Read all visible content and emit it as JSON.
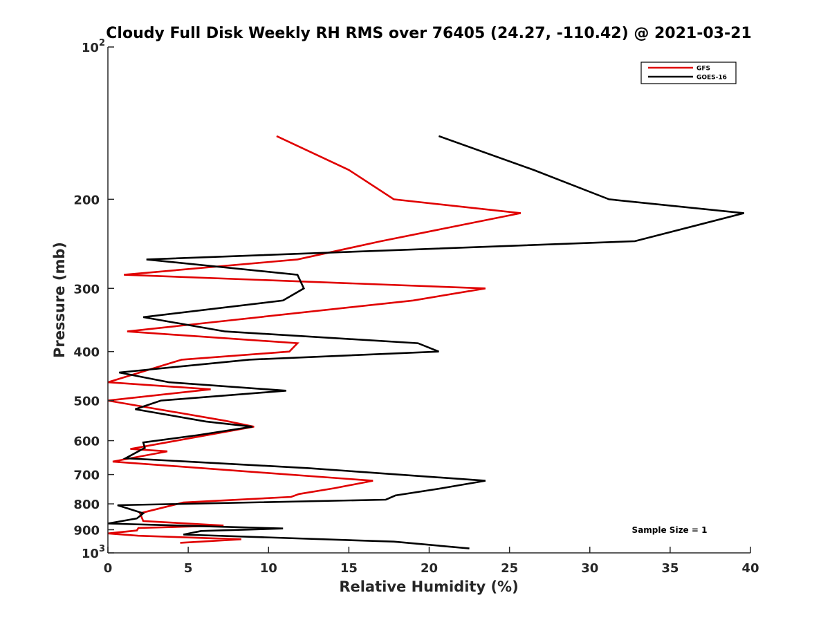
{
  "chart_data": {
    "type": "line",
    "title": "Cloudy Full Disk Weekly RH RMS over 76405 (24.27, -110.42) @ 2021-03-21",
    "xlabel": "Relative Humidity (%)",
    "ylabel": "Pressure (mb)",
    "xlim": [
      0,
      40
    ],
    "ylim": [
      100,
      1000
    ],
    "y_scale": "log",
    "y_reversed": true,
    "x_ticks": [
      "0",
      "5",
      "10",
      "15",
      "20",
      "25",
      "30",
      "35",
      "40"
    ],
    "y_ticks": [
      {
        "value": 100,
        "label": "10",
        "exp": "2"
      },
      {
        "value": 200,
        "label": "200"
      },
      {
        "value": 300,
        "label": "300"
      },
      {
        "value": 400,
        "label": "400"
      },
      {
        "value": 500,
        "label": "500"
      },
      {
        "value": 600,
        "label": "600"
      },
      {
        "value": 700,
        "label": "700"
      },
      {
        "value": 800,
        "label": "800"
      },
      {
        "value": 900,
        "label": "900"
      },
      {
        "value": 1000,
        "label": "10",
        "exp": "3"
      }
    ],
    "legend_position": "top-right",
    "annotation": "Sample Size = 1",
    "series": [
      {
        "name": "GFS",
        "color": "#e00000",
        "points": [
          [
            10.5,
            150
          ],
          [
            15.0,
            175
          ],
          [
            17.8,
            200
          ],
          [
            25.7,
            213
          ],
          [
            17.0,
            242
          ],
          [
            11.8,
            263
          ],
          [
            1.0,
            282
          ],
          [
            23.5,
            300
          ],
          [
            19.0,
            317
          ],
          [
            1.2,
            365
          ],
          [
            11.8,
            385
          ],
          [
            11.3,
            400
          ],
          [
            4.6,
            415
          ],
          [
            0.0,
            460
          ],
          [
            6.4,
            475
          ],
          [
            0.0,
            500
          ],
          [
            7.3,
            548
          ],
          [
            9.1,
            563
          ],
          [
            1.4,
            623
          ],
          [
            3.7,
            630
          ],
          [
            0.3,
            660
          ],
          [
            16.5,
            720
          ],
          [
            14.1,
            745
          ],
          [
            11.9,
            765
          ],
          [
            11.4,
            775
          ],
          [
            4.7,
            795
          ],
          [
            2.0,
            835
          ],
          [
            2.2,
            865
          ],
          [
            7.2,
            883
          ],
          [
            1.9,
            893
          ],
          [
            1.8,
            903
          ],
          [
            0.0,
            915
          ],
          [
            1.9,
            925
          ],
          [
            8.3,
            940
          ],
          [
            4.5,
            955
          ]
        ]
      },
      {
        "name": "GOES-16",
        "color": "#000000",
        "points": [
          [
            20.6,
            150
          ],
          [
            26.5,
            175
          ],
          [
            31.2,
            200
          ],
          [
            39.6,
            213
          ],
          [
            32.8,
            242
          ],
          [
            2.4,
            263
          ],
          [
            11.8,
            282
          ],
          [
            12.2,
            300
          ],
          [
            10.9,
            317
          ],
          [
            2.2,
            342
          ],
          [
            7.3,
            365
          ],
          [
            19.3,
            385
          ],
          [
            20.6,
            400
          ],
          [
            8.8,
            415
          ],
          [
            0.7,
            440
          ],
          [
            3.8,
            460
          ],
          [
            11.1,
            478
          ],
          [
            3.3,
            500
          ],
          [
            1.7,
            520
          ],
          [
            6.1,
            550
          ],
          [
            9.0,
            563
          ],
          [
            5.6,
            585
          ],
          [
            2.2,
            605
          ],
          [
            2.3,
            620
          ],
          [
            1.1,
            650
          ],
          [
            5.0,
            660
          ],
          [
            12.5,
            680
          ],
          [
            23.5,
            720
          ],
          [
            20.8,
            745
          ],
          [
            17.9,
            770
          ],
          [
            17.3,
            785
          ],
          [
            0.6,
            805
          ],
          [
            2.2,
            835
          ],
          [
            1.8,
            855
          ],
          [
            0.0,
            875
          ],
          [
            10.9,
            895
          ],
          [
            5.8,
            905
          ],
          [
            4.7,
            920
          ],
          [
            17.8,
            950
          ],
          [
            22.5,
            980
          ]
        ]
      }
    ]
  }
}
